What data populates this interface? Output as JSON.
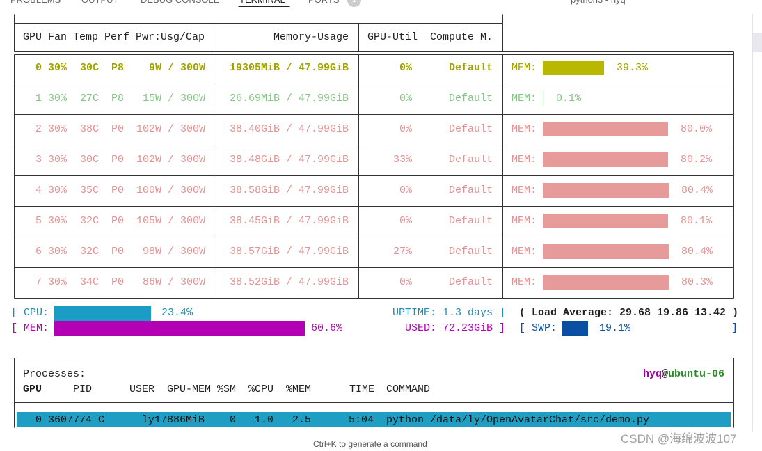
{
  "tabs": [
    "PROBLEMS",
    "OUTPUT",
    "DEBUG CONSOLE",
    "TERMINAL",
    "PORTS"
  ],
  "tab_badge": "1",
  "terminal_title": "python3 - hyq",
  "gpu_table": {
    "headers": [
      "GPU Fan Temp Perf Pwr:Usg/Cap",
      "Memory-Usage",
      "GPU-Util  Compute M."
    ],
    "mem_label": "MEM:",
    "rows": [
      {
        "gpu": "0",
        "fan": "30%",
        "temp": "30C",
        "perf": "P8",
        "power": "9W / 300W",
        "memory": "19305MiB / 47.99GiB",
        "util": "0%",
        "compute": "Default",
        "mem_percent": 39.3,
        "mem_percent_label": "39.3%",
        "color": "#a3a300",
        "bar_color": "#b8b800"
      },
      {
        "gpu": "1",
        "fan": "30%",
        "temp": "27C",
        "perf": "P8",
        "power": "15W / 300W",
        "memory": "26.69MiB / 47.99GiB",
        "util": "0%",
        "compute": "Default",
        "mem_percent": 0.1,
        "mem_percent_label": "0.1%",
        "color": "#86c486",
        "bar_color": "#86c486"
      },
      {
        "gpu": "2",
        "fan": "30%",
        "temp": "38C",
        "perf": "P0",
        "power": "102W / 300W",
        "memory": "38.40GiB / 47.99GiB",
        "util": "0%",
        "compute": "Default",
        "mem_percent": 80.0,
        "mem_percent_label": "80.0%",
        "color": "#e39393",
        "bar_color": "#e69a9a"
      },
      {
        "gpu": "3",
        "fan": "30%",
        "temp": "30C",
        "perf": "P0",
        "power": "102W / 300W",
        "memory": "38.48GiB / 47.99GiB",
        "util": "33%",
        "compute": "Default",
        "mem_percent": 80.2,
        "mem_percent_label": "80.2%",
        "color": "#e39393",
        "bar_color": "#e69a9a"
      },
      {
        "gpu": "4",
        "fan": "30%",
        "temp": "35C",
        "perf": "P0",
        "power": "100W / 300W",
        "memory": "38.58GiB / 47.99GiB",
        "util": "0%",
        "compute": "Default",
        "mem_percent": 80.4,
        "mem_percent_label": "80.4%",
        "color": "#e39393",
        "bar_color": "#e69a9a"
      },
      {
        "gpu": "5",
        "fan": "30%",
        "temp": "32C",
        "perf": "P0",
        "power": "105W / 300W",
        "memory": "38.45GiB / 47.99GiB",
        "util": "0%",
        "compute": "Default",
        "mem_percent": 80.1,
        "mem_percent_label": "80.1%",
        "color": "#e39393",
        "bar_color": "#e69a9a"
      },
      {
        "gpu": "6",
        "fan": "30%",
        "temp": "32C",
        "perf": "P0",
        "power": "98W / 300W",
        "memory": "38.57GiB / 47.99GiB",
        "util": "27%",
        "compute": "Default",
        "mem_percent": 80.4,
        "mem_percent_label": "80.4%",
        "color": "#e39393",
        "bar_color": "#e69a9a"
      },
      {
        "gpu": "7",
        "fan": "30%",
        "temp": "34C",
        "perf": "P0",
        "power": "86W / 300W",
        "memory": "38.52GiB / 47.99GiB",
        "util": "0%",
        "compute": "Default",
        "mem_percent": 80.3,
        "mem_percent_label": "80.3%",
        "color": "#e39393",
        "bar_color": "#e69a9a"
      }
    ]
  },
  "host": {
    "cpu": {
      "label": "[ CPU:",
      "percent": 23.4,
      "percent_label": "23.4%"
    },
    "mem": {
      "label": "[ MEM:",
      "percent": 60.6,
      "percent_label": "60.6%"
    },
    "uptime": "UPTIME: 1.3 days ]",
    "load_average": "( Load Average: 29.68 19.86 13.42 )",
    "used": "USED: 72.23GiB ]",
    "swap": {
      "label": "[ SWP:",
      "percent": 19.1,
      "percent_label": "19.1%",
      "close": "]"
    }
  },
  "processes": {
    "title": "Processes:",
    "user": "hyq",
    "at": "@",
    "hostname": "ubuntu-06",
    "columns": [
      "GPU",
      "PID",
      "USER",
      "GPU-MEM",
      "%SM",
      "%CPU",
      "%MEM",
      "TIME",
      "COMMAND"
    ],
    "rows": [
      [
        "0",
        "3607774",
        "C",
        "ly",
        "17886MiB",
        "0",
        "1.0",
        "2.5",
        "5:04",
        "python /data/ly/OpenAvatarChat/src/demo.py"
      ]
    ]
  },
  "hint": "Ctrl+K to generate a command",
  "watermark": "CSDN @海绵波波107"
}
